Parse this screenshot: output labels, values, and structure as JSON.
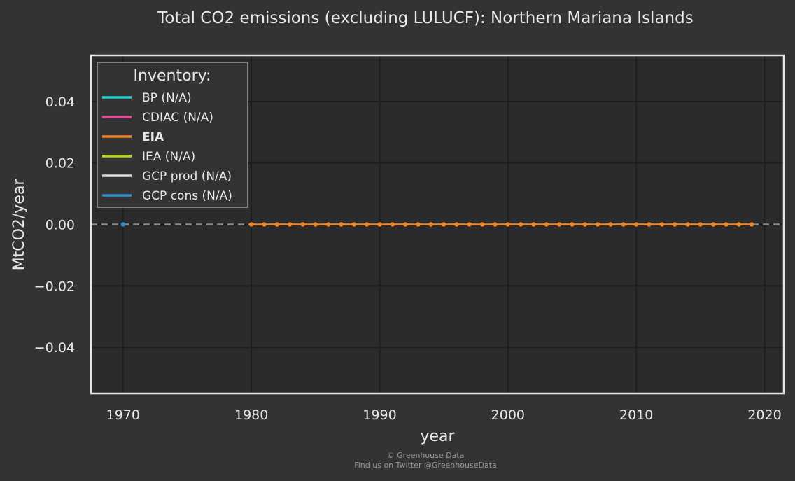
{
  "chart_data": {
    "type": "line",
    "title": "Total CO2 emissions (excluding LULUCF): Northern Mariana Islands",
    "xlabel": "year",
    "ylabel": "MtCO2/year",
    "xlim": [
      1967.5,
      2021.5
    ],
    "ylim": [
      -0.055,
      0.055
    ],
    "x_ticks": [
      1970,
      1980,
      1990,
      2000,
      2010,
      2020
    ],
    "y_ticks": [
      0.04,
      0.02,
      0.0,
      -0.02,
      -0.04
    ],
    "y_tick_labels": [
      "0.04",
      "0.02",
      "0.00",
      "−0.02",
      "−0.04"
    ],
    "grid": true,
    "zero_line": {
      "style": "dashed",
      "color": "#888888"
    },
    "legend": {
      "title": "Inventory:",
      "placement": "top-left",
      "entries": [
        {
          "label": "BP (N/A)",
          "color": "#17d4d4",
          "bold": false
        },
        {
          "label": "CDIAC (N/A)",
          "color": "#e6489e",
          "bold": false
        },
        {
          "label": "EIA",
          "color": "#f28526",
          "bold": true
        },
        {
          "label": "IEA (N/A)",
          "color": "#b5d31c",
          "bold": false
        },
        {
          "label": "GCP prod (N/A)",
          "color": "#dddddd",
          "bold": false
        },
        {
          "label": "GCP cons (N/A)",
          "color": "#2b94d1",
          "bold": false
        }
      ]
    },
    "series": [
      {
        "name": "EIA",
        "color": "#f28526",
        "x": [
          1980,
          1981,
          1982,
          1983,
          1984,
          1985,
          1986,
          1987,
          1988,
          1989,
          1990,
          1991,
          1992,
          1993,
          1994,
          1995,
          1996,
          1997,
          1998,
          1999,
          2000,
          2001,
          2002,
          2003,
          2004,
          2005,
          2006,
          2007,
          2008,
          2009,
          2010,
          2011,
          2012,
          2013,
          2014,
          2015,
          2016,
          2017,
          2018,
          2019
        ],
        "y": [
          0,
          0,
          0,
          0,
          0,
          0,
          0,
          0,
          0,
          0,
          0,
          0,
          0,
          0,
          0,
          0,
          0,
          0,
          0,
          0,
          0,
          0,
          0,
          0,
          0,
          0,
          0,
          0,
          0,
          0,
          0,
          0,
          0,
          0,
          0,
          0,
          0,
          0,
          0,
          0
        ]
      },
      {
        "name": "GCP cons (N/A)",
        "color": "#2b94d1",
        "x": [
          1970
        ],
        "y": [
          0
        ]
      }
    ]
  },
  "credits": {
    "line1": "© Greenhouse Data",
    "line2": "Find us on Twitter @GreenhouseData"
  }
}
